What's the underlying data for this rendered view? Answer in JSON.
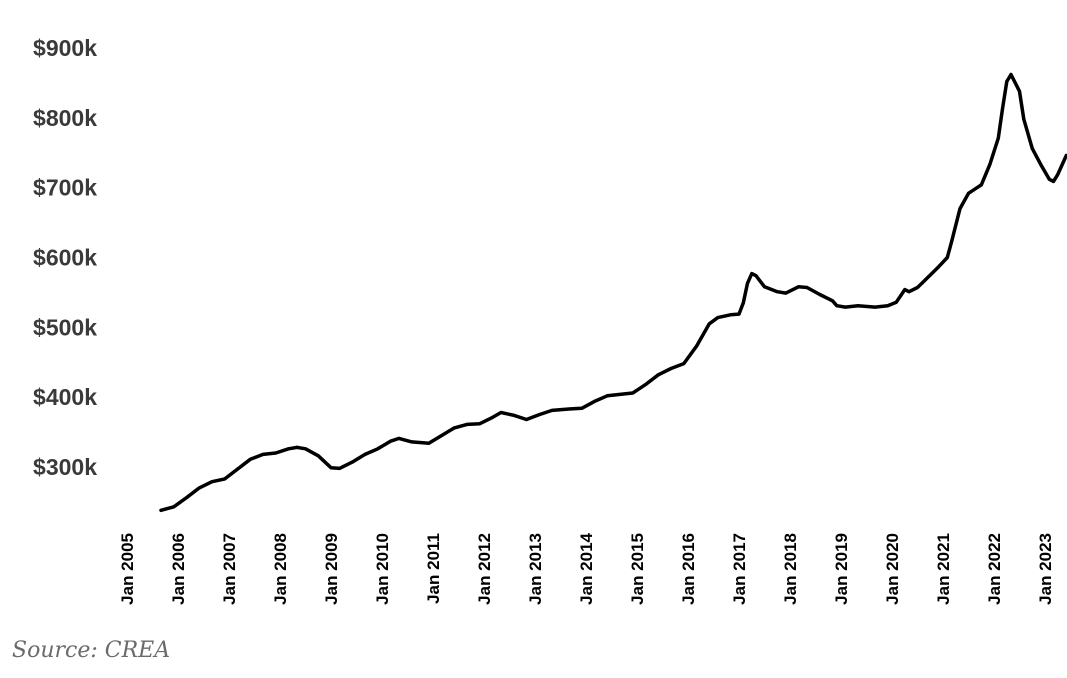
{
  "chart_data": {
    "type": "line",
    "title": "",
    "xlabel": "",
    "ylabel": "",
    "y_ticks": [
      {
        "value": 300,
        "label": "$300k"
      },
      {
        "value": 400,
        "label": "$400k"
      },
      {
        "value": 500,
        "label": "$500k"
      },
      {
        "value": 600,
        "label": "$600k"
      },
      {
        "value": 700,
        "label": "$700k"
      },
      {
        "value": 800,
        "label": "$800k"
      },
      {
        "value": 900,
        "label": "$900k"
      }
    ],
    "x_ticks": [
      {
        "value": "2005-01",
        "label": "Jan 2005"
      },
      {
        "value": "2006-01",
        "label": "Jan 2006"
      },
      {
        "value": "2007-01",
        "label": "Jan 2007"
      },
      {
        "value": "2008-01",
        "label": "Jan 2008"
      },
      {
        "value": "2009-01",
        "label": "Jan 2009"
      },
      {
        "value": "2010-01",
        "label": "Jan 2010"
      },
      {
        "value": "2011-01",
        "label": "Jan 2011"
      },
      {
        "value": "2012-01",
        "label": "Jan 2012"
      },
      {
        "value": "2013-01",
        "label": "Jan 2013"
      },
      {
        "value": "2014-01",
        "label": "Jan 2014"
      },
      {
        "value": "2015-01",
        "label": "Jan 2015"
      },
      {
        "value": "2016-01",
        "label": "Jan 2016"
      },
      {
        "value": "2017-01",
        "label": "Jan 2017"
      },
      {
        "value": "2018-01",
        "label": "Jan 2018"
      },
      {
        "value": "2019-01",
        "label": "Jan 2019"
      },
      {
        "value": "2020-01",
        "label": "Jan 2020"
      },
      {
        "value": "2021-01",
        "label": "Jan 2021"
      },
      {
        "value": "2022-01",
        "label": "Jan 2022"
      },
      {
        "value": "2023-01",
        "label": "Jan 2023"
      }
    ],
    "ylim": [
      240,
      910
    ],
    "xlim": [
      "2005-01",
      "2023-05"
    ],
    "grid": false,
    "line_color": "#000000",
    "series": [
      {
        "points": [
          [
            "2005-09",
            238
          ],
          [
            "2005-12",
            243
          ],
          [
            "2006-03",
            256
          ],
          [
            "2006-06",
            270
          ],
          [
            "2006-09",
            279
          ],
          [
            "2006-12",
            283
          ],
          [
            "2007-03",
            297
          ],
          [
            "2007-06",
            311
          ],
          [
            "2007-09",
            318
          ],
          [
            "2007-12",
            320
          ],
          [
            "2008-03",
            326
          ],
          [
            "2008-05",
            328
          ],
          [
            "2008-07",
            326
          ],
          [
            "2008-10",
            316
          ],
          [
            "2009-01",
            299
          ],
          [
            "2009-03",
            298
          ],
          [
            "2009-06",
            307
          ],
          [
            "2009-09",
            318
          ],
          [
            "2009-12",
            326
          ],
          [
            "2010-03",
            337
          ],
          [
            "2010-05",
            341
          ],
          [
            "2010-08",
            336
          ],
          [
            "2010-12",
            334
          ],
          [
            "2011-03",
            345
          ],
          [
            "2011-06",
            356
          ],
          [
            "2011-09",
            361
          ],
          [
            "2011-12",
            362
          ],
          [
            "2012-03",
            371
          ],
          [
            "2012-05",
            378
          ],
          [
            "2012-08",
            374
          ],
          [
            "2012-11",
            368
          ],
          [
            "2013-02",
            375
          ],
          [
            "2013-05",
            381
          ],
          [
            "2013-09",
            383
          ],
          [
            "2013-12",
            384
          ],
          [
            "2014-03",
            394
          ],
          [
            "2014-06",
            402
          ],
          [
            "2014-09",
            404
          ],
          [
            "2014-12",
            406
          ],
          [
            "2015-03",
            418
          ],
          [
            "2015-06",
            432
          ],
          [
            "2015-09",
            441
          ],
          [
            "2015-12",
            448
          ],
          [
            "2016-03",
            473
          ],
          [
            "2016-06",
            505
          ],
          [
            "2016-08",
            514
          ],
          [
            "2016-11",
            518
          ],
          [
            "2017-01",
            519
          ],
          [
            "2017-02",
            535
          ],
          [
            "2017-03",
            563
          ],
          [
            "2017-04",
            577
          ],
          [
            "2017-05",
            574
          ],
          [
            "2017-07",
            558
          ],
          [
            "2017-10",
            551
          ],
          [
            "2017-12",
            549
          ],
          [
            "2018-03",
            558
          ],
          [
            "2018-05",
            557
          ],
          [
            "2018-08",
            547
          ],
          [
            "2018-11",
            538
          ],
          [
            "2018-12",
            531
          ],
          [
            "2019-02",
            529
          ],
          [
            "2019-05",
            531
          ],
          [
            "2019-09",
            529
          ],
          [
            "2019-12",
            531
          ],
          [
            "2020-02",
            536
          ],
          [
            "2020-04",
            554
          ],
          [
            "2020-05",
            551
          ],
          [
            "2020-07",
            557
          ],
          [
            "2020-10",
            575
          ],
          [
            "2020-12",
            587
          ],
          [
            "2021-02",
            600
          ],
          [
            "2021-03",
            622
          ],
          [
            "2021-05",
            670
          ],
          [
            "2021-07",
            692
          ],
          [
            "2021-09",
            700
          ],
          [
            "2021-10",
            704
          ],
          [
            "2021-12",
            733
          ],
          [
            "2022-02",
            771
          ],
          [
            "2022-03",
            813
          ],
          [
            "2022-04",
            852
          ],
          [
            "2022-05",
            862
          ],
          [
            "2022-07",
            838
          ],
          [
            "2022-08",
            798
          ],
          [
            "2022-10",
            756
          ],
          [
            "2022-12",
            733
          ],
          [
            "2023-02",
            712
          ],
          [
            "2023-03",
            709
          ],
          [
            "2023-04",
            719
          ],
          [
            "2023-06",
            746
          ]
        ]
      }
    ]
  },
  "source_note": "Source: CREA"
}
